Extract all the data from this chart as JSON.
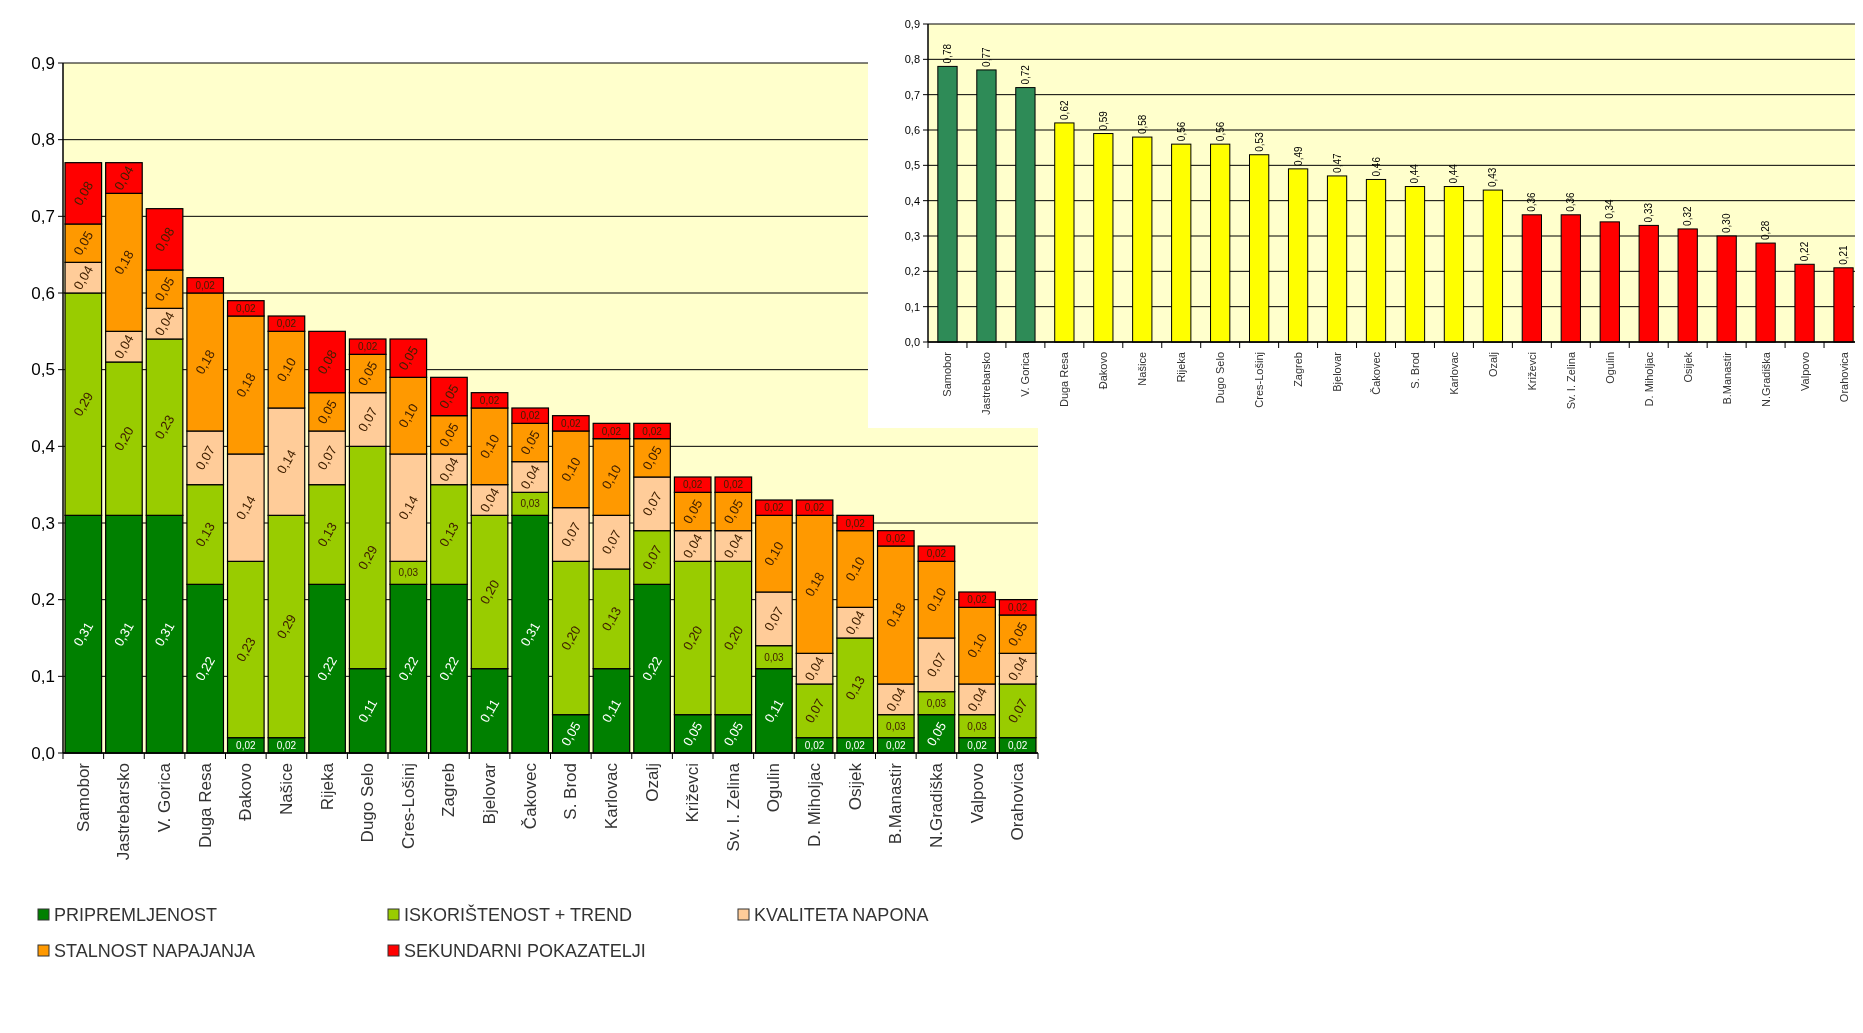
{
  "chart_data": [
    {
      "type": "bar",
      "stacked": true,
      "categories": [
        "Samobor",
        "Jastrebarsko",
        "V. Gorica",
        "Duga Resa",
        "Đakovo",
        "Našice",
        "Rijeka",
        "Dugo Selo",
        "Cres-Lošinj",
        "Zagreb",
        "Bjelovar",
        "Čakovec",
        "S. Brod",
        "Karlovac",
        "Ozalj",
        "Križevci",
        "Sv. I. Zelina",
        "Ogulin",
        "D. Miholjac",
        "Osijek",
        "B.Manastir",
        "N.Gradiška",
        "Valpovo",
        "Orahovica"
      ],
      "series": [
        {
          "name": "PRIPREMLJENOST",
          "color": "#008000",
          "values": [
            0.31,
            0.31,
            0.31,
            0.22,
            0.02,
            0.02,
            0.22,
            0.11,
            0.22,
            0.22,
            0.11,
            0.31,
            0.05,
            0.11,
            0.22,
            0.05,
            0.05,
            0.11,
            0.02,
            0.02,
            0.02,
            0.05,
            0.02,
            0.02
          ],
          "value_labels": [
            "0,31",
            "0,31",
            "0,31",
            "0,22",
            "0,02",
            "0,02",
            "0,22",
            "0,11",
            "0,22",
            "0,22",
            "0,11",
            "0,31",
            "0,05",
            "0,11",
            "0,22",
            "0,05",
            "0,05",
            "0,11",
            "0,02",
            "0,02",
            "0,02",
            "0,05",
            "0,02",
            "0,02"
          ]
        },
        {
          "name": "ISKORIŠTENOST + TREND",
          "color": "#99cc00",
          "values": [
            0.29,
            0.2,
            0.23,
            0.13,
            0.23,
            0.29,
            0.13,
            0.29,
            0.03,
            0.13,
            0.2,
            0.03,
            0.2,
            0.13,
            0.07,
            0.2,
            0.2,
            0.03,
            0.07,
            0.13,
            0.03,
            0.03,
            0.03,
            0.07
          ],
          "value_labels": [
            "0,29",
            "0,20",
            "0,23",
            "0,13",
            "0,23",
            "0,29",
            "0,13",
            "0,29",
            "0,03",
            "0,13",
            "0,20",
            "0,03",
            "0,20",
            "0,13",
            "0,07",
            "0,20",
            "0,20",
            "0,03",
            "0,07",
            "0,13",
            "0,03",
            "0,03",
            "0,03",
            "0,07"
          ]
        },
        {
          "name": "KVALITETA NAPONA",
          "color": "#ffcc99",
          "values": [
            0.04,
            0.04,
            0.04,
            0.07,
            0.14,
            0.14,
            0.07,
            0.07,
            0.14,
            0.04,
            0.04,
            0.04,
            0.07,
            0.07,
            0.07,
            0.04,
            0.04,
            0.07,
            0.04,
            0.04,
            0.04,
            0.07,
            0.04,
            0.04
          ],
          "value_labels": [
            "0,04",
            "0,04",
            "0,04",
            "0,07",
            "0,14",
            "0,14",
            "0,07",
            "0,07",
            "0,14",
            "0,04",
            "0,04",
            "0,04",
            "0,07",
            "0,07",
            "0,07",
            "0,04",
            "0,04",
            "0,07",
            "0,04",
            "0,04",
            "0,04",
            "0,07",
            "0,04",
            "0,04"
          ]
        },
        {
          "name": "STALNOST NAPAJANJA",
          "color": "#ff9900",
          "values": [
            0.05,
            0.18,
            0.05,
            0.18,
            0.18,
            0.1,
            0.05,
            0.05,
            0.1,
            0.05,
            0.1,
            0.05,
            0.1,
            0.1,
            0.05,
            0.05,
            0.05,
            0.1,
            0.18,
            0.1,
            0.18,
            0.1,
            0.1,
            0.05
          ],
          "value_labels": [
            "0,05",
            "0,18",
            "0,05",
            "0,18",
            "0,18",
            "0,10",
            "0,05",
            "0,05",
            "0,10",
            "0,05",
            "0,10",
            "0,05",
            "0,10",
            "0,10",
            "0,05",
            "0,05",
            "0,05",
            "0,10",
            "0,18",
            "0,10",
            "0,18",
            "0,10",
            "0,10",
            "0,05"
          ]
        },
        {
          "name": "SEKUNDARNI POKAZATELJI",
          "color": "#ff0000",
          "values": [
            0.08,
            0.04,
            0.08,
            0.02,
            0.02,
            0.02,
            0.08,
            0.02,
            0.05,
            0.05,
            0.02,
            0.02,
            0.02,
            0.02,
            0.02,
            0.02,
            0.02,
            0.02,
            0.02,
            0.02,
            0.02,
            0.02,
            0.02,
            0.02
          ],
          "value_labels": [
            "0,08",
            "0,04",
            "0,08",
            "0,02",
            "0,02",
            "0,02",
            "0,08",
            "0,02",
            "0,05",
            "0,05",
            "0,02",
            "0,02",
            "0,02",
            "0,02",
            "0,02",
            "0,02",
            "0,02",
            "0,02",
            "0,02",
            "0,02",
            "0,02",
            "0,02",
            "0,02",
            "0,02"
          ]
        }
      ],
      "ylim": [
        0,
        0.9
      ],
      "yticks": [
        {
          "value": 0,
          "label": "0,0"
        },
        {
          "value": 0.1,
          "label": "0,1"
        },
        {
          "value": 0.2,
          "label": "0,2"
        },
        {
          "value": 0.3,
          "label": "0,3"
        },
        {
          "value": 0.4,
          "label": "0,4"
        },
        {
          "value": 0.5,
          "label": "0,5"
        },
        {
          "value": 0.6,
          "label": "0,6"
        },
        {
          "value": 0.7,
          "label": "0,7"
        },
        {
          "value": 0.8,
          "label": "0,8"
        },
        {
          "value": 0.9,
          "label": "0,9"
        }
      ],
      "grid": "y",
      "legend": "bottom"
    },
    {
      "type": "bar",
      "categories": [
        "Samobor",
        "Jastrebarsko",
        "V. Gorica",
        "Duga Resa",
        "Đakovo",
        "Našice",
        "Rijeka",
        "Dugo Selo",
        "Cres-Lošinj",
        "Zagreb",
        "Bjelovar",
        "Čakovec",
        "S. Brod",
        "Karlovac",
        "Ozalj",
        "Križevci",
        "Sv. I. Zelina",
        "Ogulin",
        "D. Miholjac",
        "Osijek",
        "B.Manastir",
        "N.Gradiška",
        "Valpovo",
        "Orahovica"
      ],
      "values": [
        0.78,
        0.77,
        0.72,
        0.62,
        0.59,
        0.58,
        0.56,
        0.56,
        0.53,
        0.49,
        0.47,
        0.46,
        0.44,
        0.44,
        0.43,
        0.36,
        0.36,
        0.34,
        0.33,
        0.32,
        0.3,
        0.28,
        0.22,
        0.21
      ],
      "value_labels": [
        "0,78",
        "0,77",
        "0,72",
        "0,62",
        "0,59",
        "0,58",
        "0,56",
        "0,56",
        "0,53",
        "0,49",
        "0,47",
        "0,46",
        "0,44",
        "0,44",
        "0,43",
        "0,36",
        "0,36",
        "0,34",
        "0,33",
        "0,32",
        "0,30",
        "0,28",
        "0,22",
        "0,21"
      ],
      "colors": [
        "#2e8b57",
        "#2e8b57",
        "#2e8b57",
        "#ffff00",
        "#ffff00",
        "#ffff00",
        "#ffff00",
        "#ffff00",
        "#ffff00",
        "#ffff00",
        "#ffff00",
        "#ffff00",
        "#ffff00",
        "#ffff00",
        "#ffff00",
        "#ff0000",
        "#ff0000",
        "#ff0000",
        "#ff0000",
        "#ff0000",
        "#ff0000",
        "#ff0000",
        "#ff0000",
        "#ff0000"
      ],
      "ylim": [
        0,
        0.9
      ],
      "yticks": [
        {
          "value": 0,
          "label": "0,0"
        },
        {
          "value": 0.1,
          "label": "0,1"
        },
        {
          "value": 0.2,
          "label": "0,2"
        },
        {
          "value": 0.3,
          "label": "0,3"
        },
        {
          "value": 0.4,
          "label": "0,4"
        },
        {
          "value": 0.5,
          "label": "0,5"
        },
        {
          "value": 0.6,
          "label": "0,6"
        },
        {
          "value": 0.7,
          "label": "0,7"
        },
        {
          "value": 0.8,
          "label": "0,8"
        },
        {
          "value": 0.9,
          "label": "0,9"
        }
      ],
      "grid": "y"
    }
  ]
}
